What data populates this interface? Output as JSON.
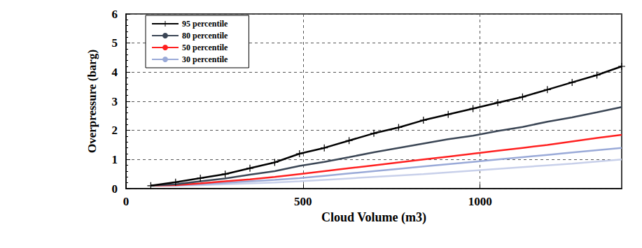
{
  "chart_data": {
    "type": "line",
    "x_label": "Cloud Volume (m3)",
    "y_label": "Overpressure (barg)",
    "x": [
      70,
      140,
      210,
      280,
      350,
      420,
      490,
      560,
      630,
      700,
      770,
      840,
      910,
      980,
      1050,
      1120,
      1190,
      1260,
      1330,
      1400
    ],
    "series": [
      {
        "name": "95 percentile",
        "color": "#000000",
        "marker": "plus",
        "values": [
          0.1,
          0.22,
          0.36,
          0.5,
          0.7,
          0.9,
          1.2,
          1.4,
          1.65,
          1.9,
          2.1,
          2.35,
          2.55,
          2.75,
          2.95,
          3.15,
          3.4,
          3.65,
          3.9,
          4.2
        ]
      },
      {
        "name": "80 percentile",
        "color": "#3b4655",
        "values": [
          0.1,
          0.15,
          0.25,
          0.35,
          0.48,
          0.6,
          0.78,
          0.92,
          1.08,
          1.25,
          1.4,
          1.55,
          1.7,
          1.82,
          1.98,
          2.12,
          2.3,
          2.45,
          2.62,
          2.8
        ]
      },
      {
        "name": "50 percentile",
        "color": "#ff2020",
        "values": [
          0.1,
          0.12,
          0.18,
          0.25,
          0.32,
          0.4,
          0.5,
          0.6,
          0.7,
          0.8,
          0.9,
          1.0,
          1.1,
          1.2,
          1.3,
          1.4,
          1.5,
          1.62,
          1.74,
          1.85
        ]
      },
      {
        "name": "30 percentile",
        "color": "#9aaad8",
        "values": [
          0.1,
          0.11,
          0.15,
          0.2,
          0.25,
          0.3,
          0.36,
          0.44,
          0.52,
          0.6,
          0.68,
          0.76,
          0.84,
          0.92,
          1.0,
          1.08,
          1.16,
          1.24,
          1.32,
          1.4
        ]
      },
      {
        "color": "#c8d0ea",
        "values": [
          0.1,
          0.1,
          0.12,
          0.15,
          0.18,
          0.21,
          0.25,
          0.3,
          0.35,
          0.4,
          0.45,
          0.5,
          0.56,
          0.62,
          0.68,
          0.74,
          0.8,
          0.86,
          0.93,
          1.0
        ]
      }
    ],
    "xlim": [
      0,
      1400
    ],
    "xticks": [
      0,
      500,
      1000
    ],
    "ylim": [
      0,
      6
    ],
    "yticks": [
      0,
      1,
      2,
      3,
      4,
      5,
      6
    ],
    "grid": true,
    "legend": "upper left"
  }
}
